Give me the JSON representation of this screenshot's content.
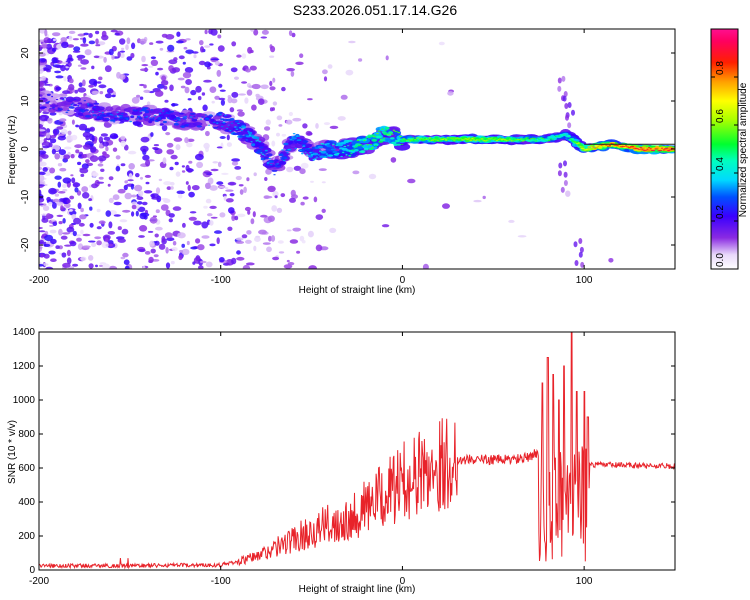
{
  "title": "S233.2026.051.17.14.G26",
  "chart_data": [
    {
      "type": "heatmap",
      "xlabel": "Height of straight line (km)",
      "ylabel": "Frequency (Hz)",
      "xlim": [
        -200,
        150
      ],
      "ylim": [
        -25,
        25
      ],
      "x_ticks": [
        -200,
        -100,
        0,
        100
      ],
      "y_ticks": [
        -20,
        -10,
        0,
        10,
        20
      ],
      "colorbar": {
        "label": "Normalized spectral amplitude",
        "range": [
          0,
          1
        ],
        "ticks": [
          "0.0",
          "0.2",
          "0.4",
          "0.6",
          "0.8"
        ]
      },
      "ridge": [
        {
          "x": -200,
          "y": 10,
          "a": 0.22
        },
        {
          "x": -180,
          "y": 9,
          "a": 0.28
        },
        {
          "x": -160,
          "y": 7,
          "a": 0.32
        },
        {
          "x": -140,
          "y": 7,
          "a": 0.3
        },
        {
          "x": -120,
          "y": 6,
          "a": 0.3
        },
        {
          "x": -100,
          "y": 6,
          "a": 0.3
        },
        {
          "x": -90,
          "y": 4,
          "a": 0.35
        },
        {
          "x": -80,
          "y": 1,
          "a": 0.38
        },
        {
          "x": -70,
          "y": -4,
          "a": 0.3
        },
        {
          "x": -60,
          "y": 2,
          "a": 0.35
        },
        {
          "x": -50,
          "y": -1,
          "a": 0.35
        },
        {
          "x": -40,
          "y": 0,
          "a": 0.4
        },
        {
          "x": -30,
          "y": 0,
          "a": 0.45
        },
        {
          "x": -20,
          "y": 1,
          "a": 0.55
        },
        {
          "x": -10,
          "y": 3,
          "a": 0.55
        },
        {
          "x": 0,
          "y": 2,
          "a": 0.55
        },
        {
          "x": 20,
          "y": 2,
          "a": 0.6
        },
        {
          "x": 40,
          "y": 2,
          "a": 0.62
        },
        {
          "x": 60,
          "y": 2,
          "a": 0.6
        },
        {
          "x": 80,
          "y": 2,
          "a": 0.5
        },
        {
          "x": 90,
          "y": 3,
          "a": 0.45
        },
        {
          "x": 100,
          "y": 0,
          "a": 0.7
        },
        {
          "x": 115,
          "y": 1,
          "a": 0.85
        },
        {
          "x": 130,
          "y": 0,
          "a": 0.9
        },
        {
          "x": 150,
          "y": 0,
          "a": 0.9
        }
      ]
    },
    {
      "type": "line",
      "xlabel": "Height of straight line (km)",
      "ylabel": "SNR (10 * v/v)",
      "xlim": [
        -200,
        150
      ],
      "ylim": [
        0,
        1400
      ],
      "x_ticks": [
        -200,
        -100,
        0,
        100
      ],
      "y_ticks": [
        0,
        200,
        400,
        600,
        800,
        1000,
        1200,
        1400
      ],
      "color": "#e8232a",
      "envelope": [
        {
          "x": -200,
          "y": 25
        },
        {
          "x": -150,
          "y": 25
        },
        {
          "x": -100,
          "y": 30
        },
        {
          "x": -90,
          "y": 50
        },
        {
          "x": -80,
          "y": 80
        },
        {
          "x": -70,
          "y": 130
        },
        {
          "x": -60,
          "y": 180
        },
        {
          "x": -50,
          "y": 230
        },
        {
          "x": -40,
          "y": 270
        },
        {
          "x": -30,
          "y": 310
        },
        {
          "x": -20,
          "y": 370
        },
        {
          "x": -10,
          "y": 440
        },
        {
          "x": 0,
          "y": 520
        },
        {
          "x": 10,
          "y": 570
        },
        {
          "x": 20,
          "y": 620
        },
        {
          "x": 30,
          "y": 650
        },
        {
          "x": 60,
          "y": 650
        },
        {
          "x": 70,
          "y": 660
        },
        {
          "x": 75,
          "y": 700
        },
        {
          "x": 80,
          "y": 750
        },
        {
          "x": 90,
          "y": 750
        },
        {
          "x": 100,
          "y": 700
        },
        {
          "x": 102,
          "y": 620
        },
        {
          "x": 150,
          "y": 610
        }
      ],
      "spikes": [
        {
          "x": 77,
          "y": 1100
        },
        {
          "x": 80,
          "y": 1250
        },
        {
          "x": 83,
          "y": 1150
        },
        {
          "x": 86,
          "y": 1000
        },
        {
          "x": 89,
          "y": 1200
        },
        {
          "x": 93,
          "y": 1400
        },
        {
          "x": 96,
          "y": 1050
        },
        {
          "x": 100,
          "y": 1050
        },
        {
          "x": 102,
          "y": 900
        }
      ]
    }
  ]
}
